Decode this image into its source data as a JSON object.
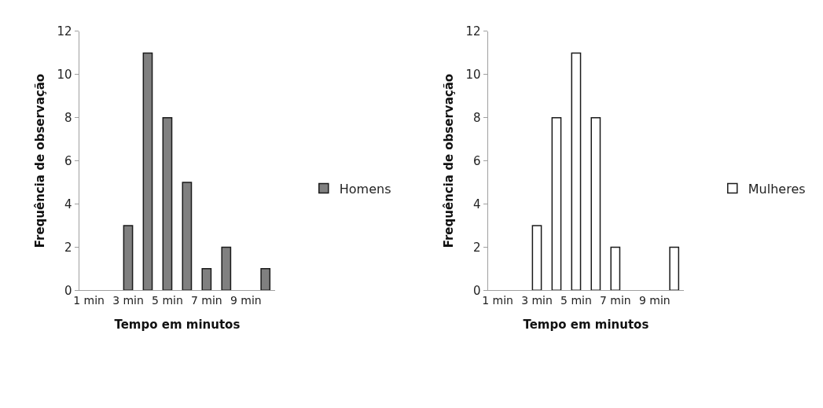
{
  "chart_data": [
    {
      "type": "bar",
      "xlabel": "Tempo em minutos",
      "ylabel": "Frequência de observação",
      "categories": [
        "1 min",
        null,
        "3 min",
        null,
        "5 min",
        null,
        "7 min",
        null,
        "9 min",
        null
      ],
      "series": [
        {
          "name": "Homens",
          "color": "#808080",
          "values": [
            null,
            null,
            3,
            11,
            8,
            5,
            1,
            2,
            null,
            1
          ]
        }
      ],
      "ylim": [
        0,
        12
      ],
      "yticks": [
        0,
        2,
        4,
        6,
        8,
        10,
        12
      ],
      "legend": "right"
    },
    {
      "type": "bar",
      "xlabel": "Tempo em minutos",
      "ylabel": "Frequência de observação",
      "categories": [
        "1 min",
        null,
        "3 min",
        null,
        "5 min",
        null,
        "7 min",
        null,
        "9 min",
        null
      ],
      "series": [
        {
          "name": "Mulheres",
          "color": "#ffffff",
          "values": [
            null,
            null,
            3,
            8,
            11,
            8,
            2,
            null,
            null,
            2
          ]
        }
      ],
      "ylim": [
        0,
        12
      ],
      "yticks": [
        0,
        2,
        4,
        6,
        8,
        10,
        12
      ],
      "legend": "right"
    }
  ]
}
